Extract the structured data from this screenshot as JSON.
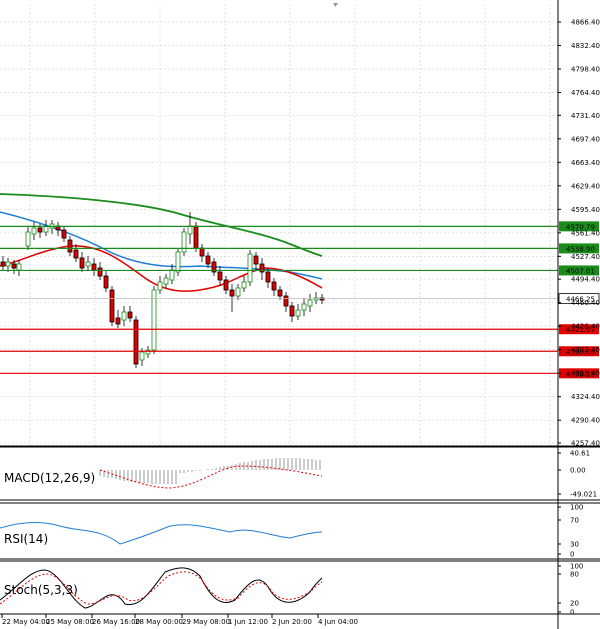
{
  "price_panel": {
    "price_ticks": [
      "4866.40",
      "4832.40",
      "4798.40",
      "4764.40",
      "4731.40",
      "4697.40",
      "4663.40",
      "4629.40",
      "4595.40",
      "4561.40",
      "4527.40",
      "4494.40",
      "4460.40",
      "4426.40",
      "4392.40",
      "4358.40",
      "4324.40",
      "4290.40",
      "4257.40"
    ],
    "current_price": "4466.25",
    "resistance_levels": [
      {
        "value": 4570.79,
        "label": "4570.79",
        "color": "#1a8c1a"
      },
      {
        "value": 4538.9,
        "label": "4538.90",
        "color": "#1a8c1a"
      },
      {
        "value": 4507.01,
        "label": "4507.01",
        "color": "#1a8c1a"
      }
    ],
    "support_levels": [
      {
        "value": 4421.97,
        "label": "4421.97",
        "color": "#e00000"
      },
      {
        "value": 4390.08,
        "label": "4390.08",
        "color": "#e00000"
      },
      {
        "value": 4358.19,
        "label": "4358.19",
        "color": "#e00000"
      }
    ]
  },
  "macd_panel": {
    "title": "MACD(12,26,9)",
    "ticks": [
      "40.61",
      "0.00",
      "-49.021"
    ]
  },
  "rsi_panel": {
    "title": "RSI(14)",
    "ticks": [
      "100",
      "70",
      "30",
      "0"
    ]
  },
  "stoch_panel": {
    "title": "Stoch(5,3,3)",
    "ticks": [
      "100",
      "80",
      "20",
      "0"
    ]
  },
  "time_axis": {
    "labels": [
      "22 May 04:00",
      "25 May 08:00",
      "26 May 16:00",
      "28 May 00:00",
      "29 May 08:00",
      "1 Jun 12:00",
      "2 Jun 20:00",
      "4 Jun 04:00"
    ]
  },
  "colors": {
    "candle_bull": "#1a8c1a",
    "candle_bear": "#e00000",
    "ma_fast": "#e00000",
    "ma_mid": "#1f7fd6",
    "ma_slow": "#1a8c1a",
    "grid": "#d8d8d8"
  }
}
